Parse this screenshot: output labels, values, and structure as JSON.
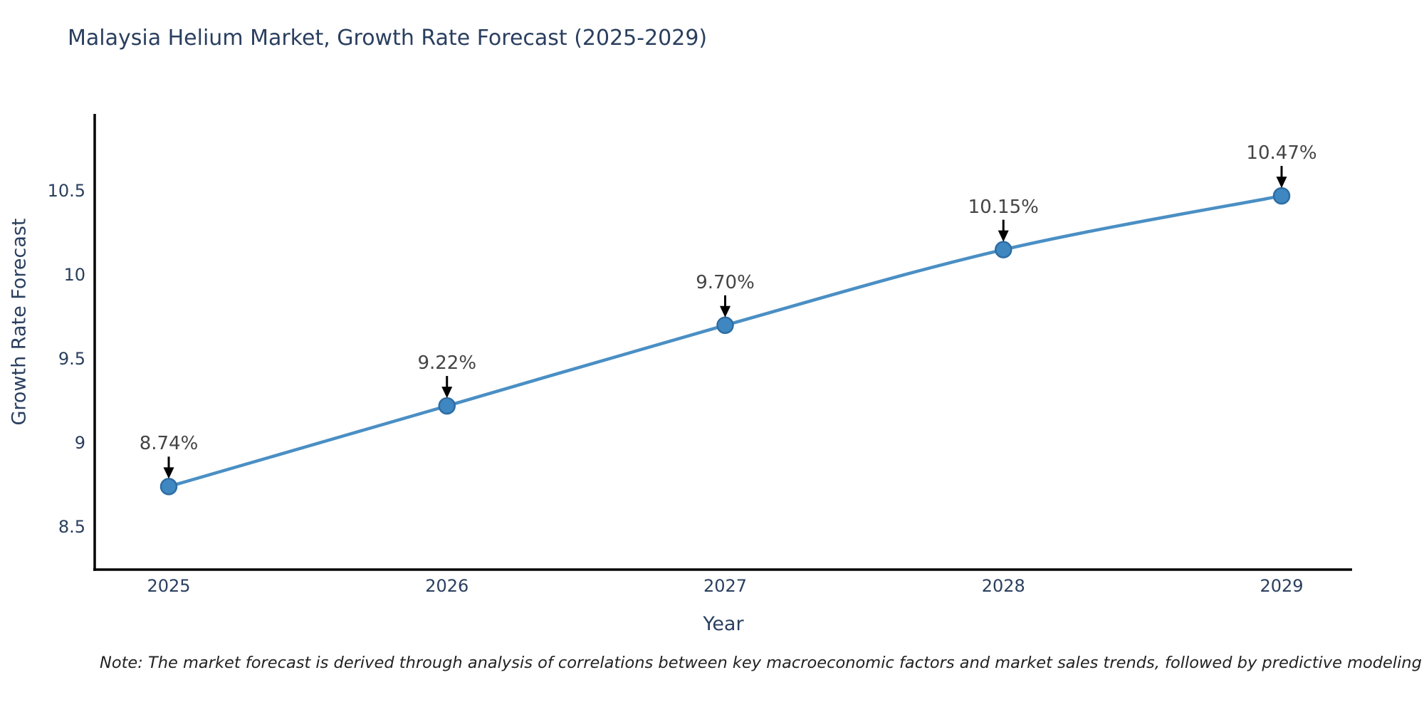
{
  "page": {
    "background_color": "#ffffff"
  },
  "chart_data": {
    "type": "line",
    "title": "Malaysia Helium Market, Growth Rate Forecast (2025-2029)",
    "xlabel": "Year",
    "ylabel": "Growth Rate Forecast",
    "categories": [
      2025,
      2026,
      2027,
      2028,
      2029
    ],
    "values": [
      8.74,
      9.22,
      9.7,
      10.15,
      10.47
    ],
    "point_labels": [
      "8.74%",
      "9.22%",
      "9.70%",
      "10.15%",
      "10.47%"
    ],
    "x_ticks": [
      "2025",
      "2026",
      "2027",
      "2028",
      "2029"
    ],
    "y_ticks": [
      "8.5",
      "9",
      "9.5",
      "10",
      "10.5"
    ],
    "y_tick_values": [
      8.5,
      9,
      9.5,
      10,
      10.5
    ],
    "ylim": [
      8.25,
      10.96
    ],
    "xlim": [
      2024.73,
      2029.25
    ],
    "grid": false,
    "legend_position": "none",
    "line_shape": "spline",
    "annotation_arrows": true,
    "colors": {
      "line": "#4a8fc4",
      "marker_fill": "#3f87c0",
      "marker_edge": "#2e6da4",
      "axis_line": "#000000",
      "title_text": "#2a3f5f",
      "tick_text": "#2a3f5f",
      "annotation_text": "#444444",
      "arrow": "#000000",
      "note_text": "#222222"
    }
  },
  "note": {
    "text": "Note: The market forecast is derived through analysis of correlations between key macroeconomic factors and market sales trends, followed by predictive modeling to project future sal"
  }
}
